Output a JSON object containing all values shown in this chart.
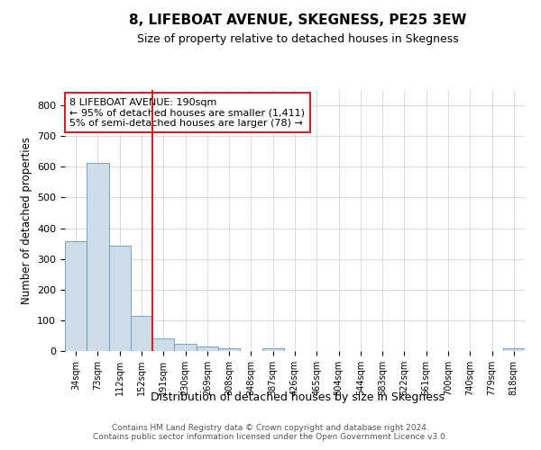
{
  "title": "8, LIFEBOAT AVENUE, SKEGNESS, PE25 3EW",
  "subtitle": "Size of property relative to detached houses in Skegness",
  "xlabel": "Distribution of detached houses by size in Skegness",
  "ylabel": "Number of detached properties",
  "categories": [
    "34sqm",
    "73sqm",
    "112sqm",
    "152sqm",
    "191sqm",
    "230sqm",
    "269sqm",
    "308sqm",
    "348sqm",
    "387sqm",
    "426sqm",
    "465sqm",
    "504sqm",
    "544sqm",
    "583sqm",
    "622sqm",
    "661sqm",
    "700sqm",
    "740sqm",
    "779sqm",
    "818sqm"
  ],
  "values": [
    357,
    612,
    344,
    115,
    40,
    22,
    15,
    8,
    0,
    8,
    0,
    0,
    0,
    0,
    0,
    0,
    0,
    0,
    0,
    0,
    8
  ],
  "bar_color": "#cddce9",
  "bar_edge_color": "#6699bb",
  "vline_x_index": 4,
  "vline_color": "#cc2222",
  "annotation_text": "8 LIFEBOAT AVENUE: 190sqm\n← 95% of detached houses are smaller (1,411)\n5% of semi-detached houses are larger (78) →",
  "annotation_box_color": "#cc2222",
  "ylim": [
    0,
    850
  ],
  "yticks": [
    0,
    100,
    200,
    300,
    400,
    500,
    600,
    700,
    800
  ],
  "footnote": "Contains HM Land Registry data © Crown copyright and database right 2024.\nContains public sector information licensed under the Open Government Licence v3.0.",
  "bg_color": "#ffffff",
  "grid_color": "#c8cfd8"
}
